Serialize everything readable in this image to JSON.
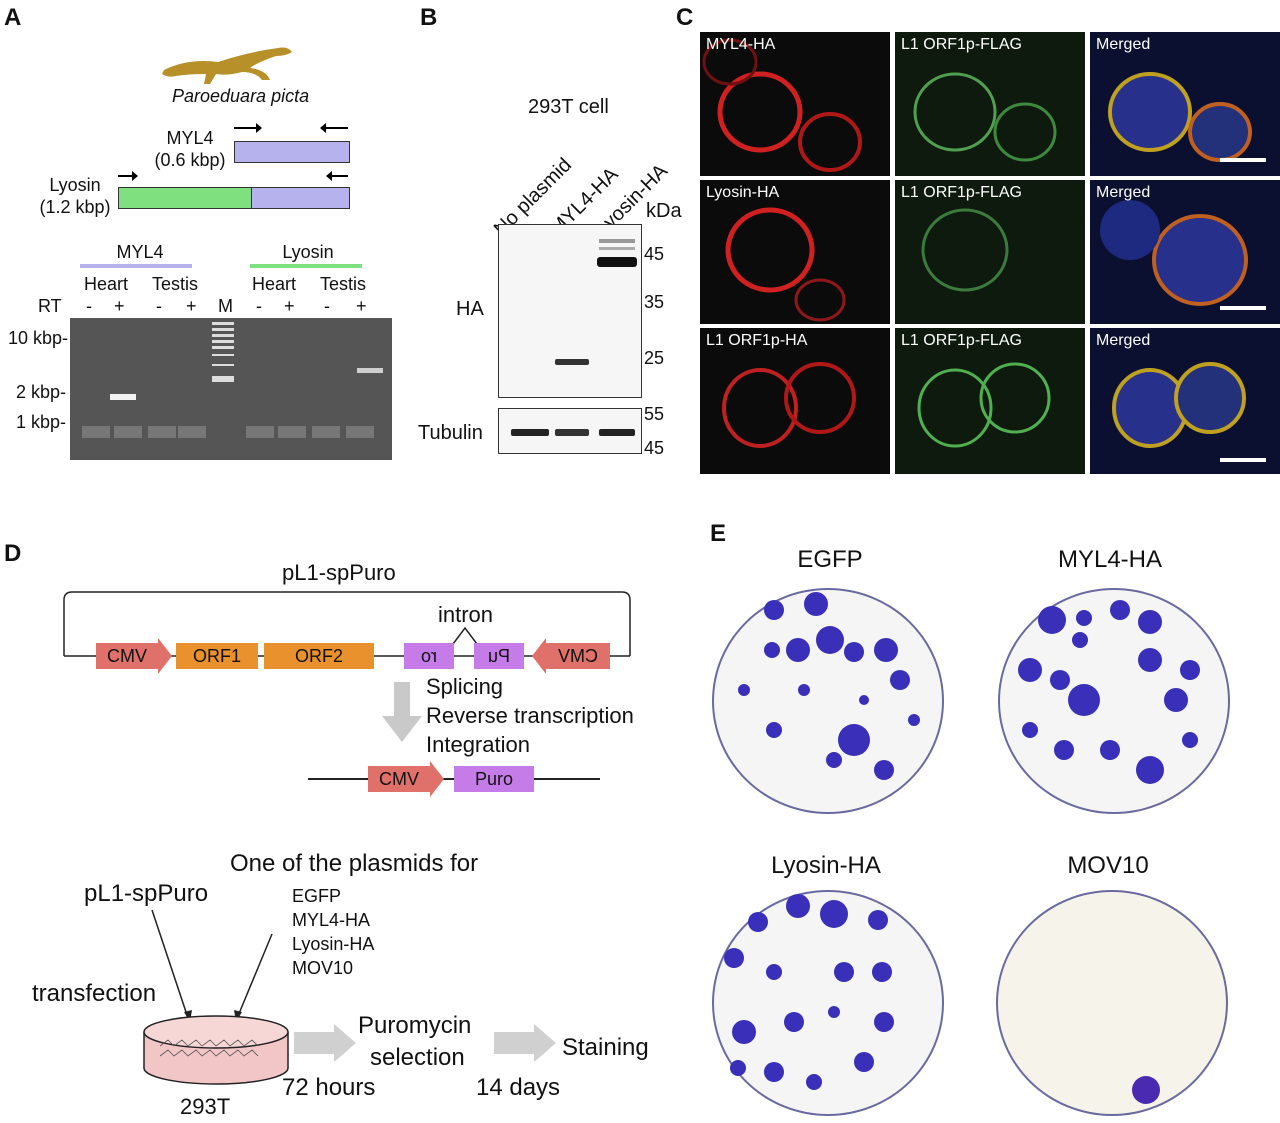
{
  "panels": {
    "A": {
      "letter": "A",
      "species": "Paroeduara picta",
      "myl4_label": "MYL4",
      "myl4_size": "(0.6 kbp)",
      "lyosin_label": "Lyosin",
      "lyosin_size": "(1.2 kbp)",
      "gel": {
        "group1": "MYL4",
        "group2": "Lyosin",
        "tissue_heart": "Heart",
        "tissue_testis": "Testis",
        "rt_label": "RT",
        "minus": "-",
        "plus": "+",
        "marker": "M",
        "size_10": "10 kbp-",
        "size_2": "2 kbp-",
        "size_1": "1 kbp-"
      }
    },
    "B": {
      "letter": "B",
      "title": "293T cell",
      "lanes": [
        "No plasmid",
        "MYL4-HA",
        "Lyosin-HA"
      ],
      "kda": "kDa",
      "ha_label": "HA",
      "tubulin_label": "Tubulin",
      "markers_top": [
        "45",
        "35",
        "25"
      ],
      "markers_bottom": [
        "55",
        "45"
      ]
    },
    "C": {
      "letter": "C",
      "rows": [
        [
          "MYL4-HA",
          "L1 ORF1p-FLAG",
          "Merged"
        ],
        [
          "Lyosin-HA",
          "L1 ORF1p-FLAG",
          "Merged"
        ],
        [
          "L1 ORF1p-HA",
          "L1 ORF1p-FLAG",
          "Merged"
        ]
      ]
    },
    "D": {
      "letter": "D",
      "construct": "pL1-spPuro",
      "intron": "intron",
      "boxes": {
        "cmv": "CMV",
        "orf1": "ORF1",
        "orf2": "ORF2",
        "ro": "ro",
        "pu": "Pu",
        "cmv_rev": "CMV",
        "puro": "Puro"
      },
      "steps": [
        "Splicing",
        "Reverse transcription",
        "Integration"
      ],
      "workflow": {
        "plasmid": "pL1-spPuro",
        "one_of": "One of the plasmids for",
        "options": [
          "EGFP",
          "MYL4-HA",
          "Lyosin-HA",
          "MOV10"
        ],
        "transfection": "transfection",
        "cell": "293T",
        "puromycin": "Puromycin",
        "selection": "selection",
        "staining": "Staining",
        "h72": "72 hours",
        "d14": "14 days"
      }
    },
    "E": {
      "letter": "E",
      "plates": [
        "EGFP",
        "MYL4-HA",
        "Lyosin-HA",
        "MOV10"
      ]
    }
  },
  "colors": {
    "purple_box": "#b6b2ee",
    "green_box": "#7fe07f",
    "cmv_red": "#e0706a",
    "orf_orange": "#e8912d",
    "puro_violet": "#c57be8",
    "colony": "#3a2fb8",
    "gecko": "#b8902a"
  }
}
